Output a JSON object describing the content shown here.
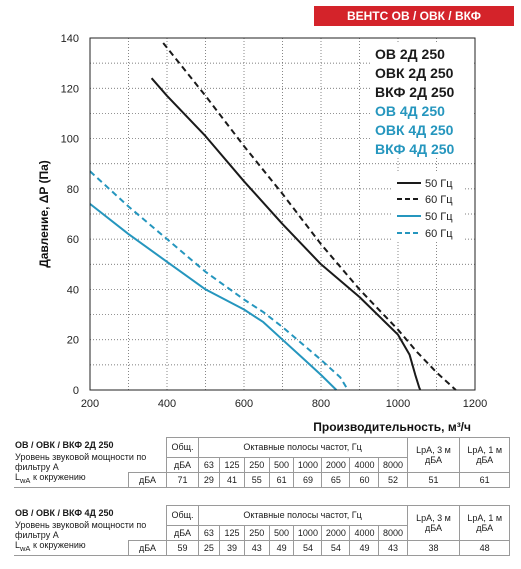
{
  "brand_tag": "ВЕНТС ОВ / ОВК / ВКФ",
  "models": {
    "black": [
      "ОВ 2Д 250",
      "ОВК 2Д 250",
      "ВКФ 2Д 250"
    ],
    "blue": [
      "ОВ 4Д 250",
      "ОВК 4Д 250",
      "ВКФ 4Д 250"
    ]
  },
  "colors": {
    "black_series": "#1a1a1a",
    "blue_series": "#2596be",
    "brand": "#d4232a"
  },
  "chart_data": {
    "type": "line",
    "xlabel": "Производительность, м³/ч",
    "ylabel": "Давление, ΔP (Па)",
    "xlim": [
      200,
      1200
    ],
    "ylim": [
      0,
      140
    ],
    "x_ticks": [
      "200",
      "400",
      "600",
      "800",
      "1000",
      "1200"
    ],
    "y_ticks": [
      "0",
      "20",
      "40",
      "60",
      "80",
      "100",
      "120",
      "140"
    ],
    "grid": true,
    "legend_position": "right",
    "series": [
      {
        "name": "50 Гц",
        "group": "2Д",
        "style": "solid",
        "color": "#1a1a1a",
        "x": [
          360,
          400,
          500,
          600,
          700,
          800,
          900,
          1000,
          1030,
          1045,
          1055,
          1058
        ],
        "y": [
          124,
          117,
          101,
          83,
          66,
          50,
          37,
          22,
          14,
          6,
          1,
          0
        ]
      },
      {
        "name": "60 Гц",
        "group": "2Д",
        "style": "dashed",
        "color": "#1a1a1a",
        "x": [
          390,
          500,
          600,
          700,
          800,
          900,
          1000,
          1050,
          1100,
          1150
        ],
        "y": [
          138,
          117,
          97,
          78,
          58,
          40,
          24,
          15,
          7,
          0
        ]
      },
      {
        "name": "50 Гц",
        "group": "4Д",
        "style": "solid",
        "color": "#2596be",
        "x": [
          200,
          300,
          400,
          500,
          600,
          650,
          700,
          750,
          800,
          840
        ],
        "y": [
          74,
          62,
          51,
          40,
          32,
          27,
          20,
          13,
          6,
          0
        ]
      },
      {
        "name": "60 Гц",
        "group": "4Д",
        "style": "dashed",
        "color": "#2596be",
        "x": [
          200,
          300,
          400,
          500,
          600,
          650,
          700,
          800,
          850,
          870
        ],
        "y": [
          87,
          73,
          60,
          47,
          36,
          31,
          25,
          12,
          5,
          0
        ]
      }
    ]
  },
  "table_common": {
    "obsh": "Общ.",
    "octave_header": "Октавные полосы частот, Гц",
    "lpa3": "LpA, 3 м дБА",
    "lpa1": "LpA, 1 м дБА",
    "dba": "дБА",
    "freqs": [
      "63",
      "125",
      "250",
      "500",
      "1000",
      "2000",
      "4000",
      "8000"
    ],
    "lwa_pre": "L",
    "lwa_sub": "wA",
    "lwa_post": " к окружению"
  },
  "tables": [
    {
      "model": "ОВ / ОВК / ВКФ 2Д 250",
      "desc": "Уровень звуковой мощности по фильтру А",
      "total": "71",
      "values": [
        "29",
        "41",
        "55",
        "61",
        "69",
        "65",
        "60",
        "52"
      ],
      "lpa3": "51",
      "lpa1": "61"
    },
    {
      "model": "ОВ / ОВК / ВКФ 4Д 250",
      "desc": "Уровень звуковой мощности по фильтру А",
      "total": "59",
      "values": [
        "25",
        "39",
        "43",
        "49",
        "54",
        "54",
        "49",
        "43"
      ],
      "lpa3": "38",
      "lpa1": "48"
    }
  ]
}
